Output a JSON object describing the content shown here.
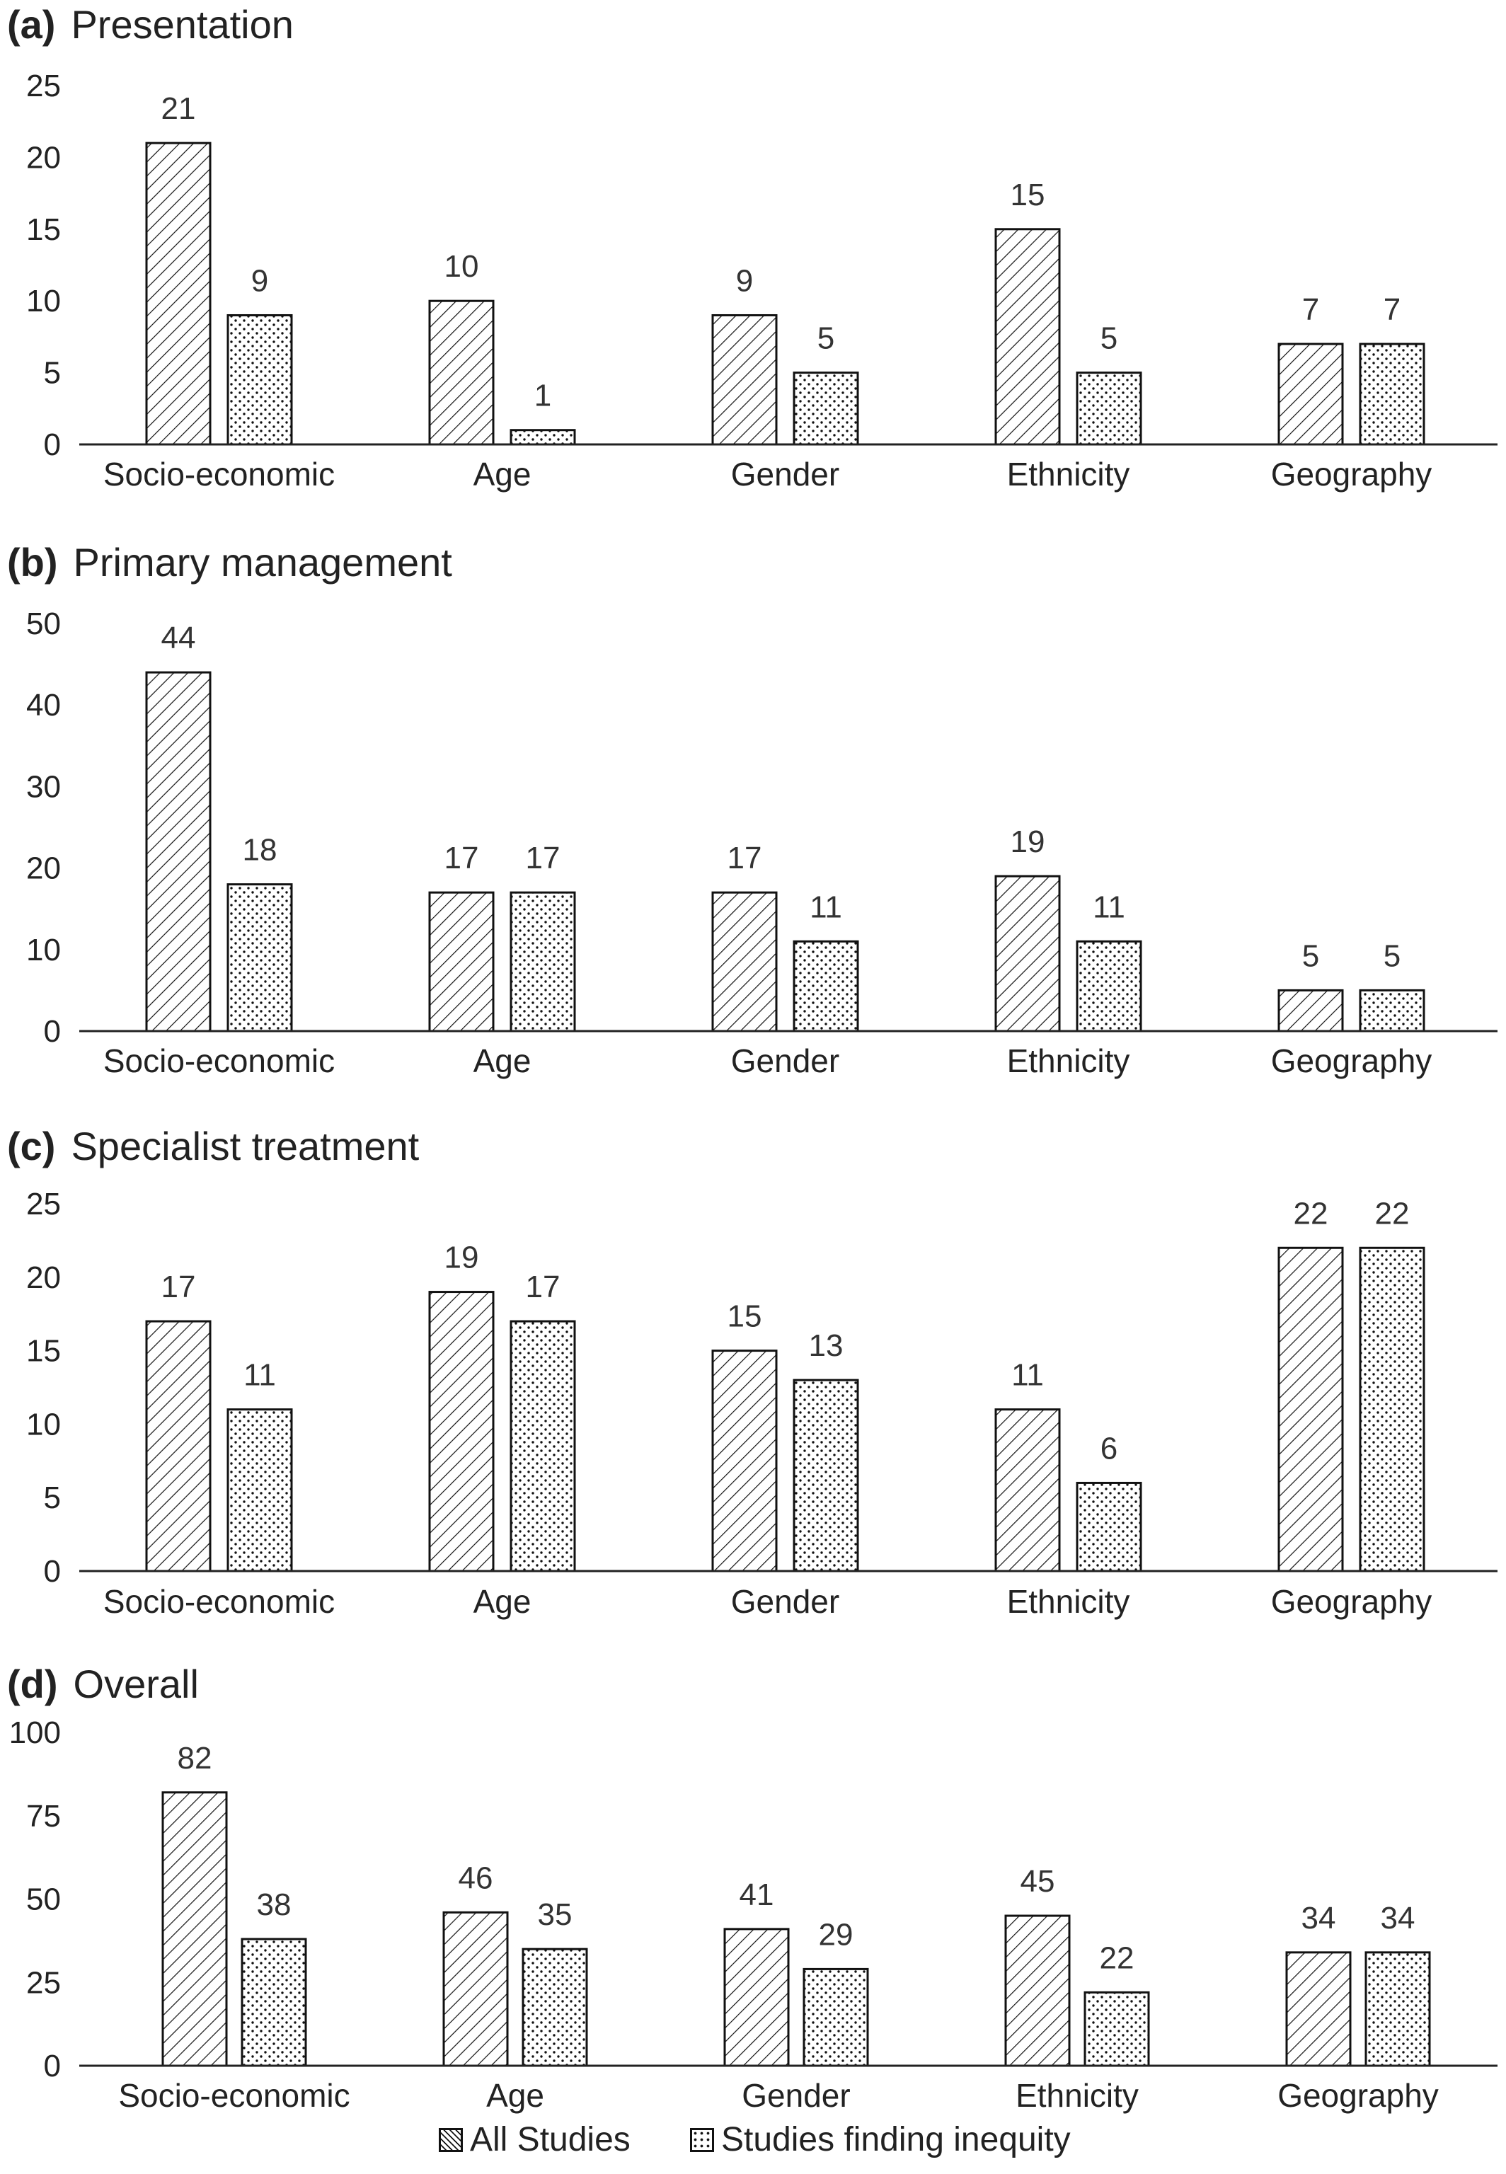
{
  "chart_data": [
    {
      "type": "bar",
      "panel_label": "(a)",
      "title": "Presentation",
      "categories": [
        "Socio-economic",
        "Age",
        "Gender",
        "Ethnicity",
        "Geography"
      ],
      "series": [
        {
          "name": "All Studies",
          "values": [
            21,
            10,
            9,
            15,
            7
          ]
        },
        {
          "name": "Studies finding inequity",
          "values": [
            9,
            1,
            5,
            5,
            7
          ]
        }
      ],
      "ylim": [
        0,
        25
      ],
      "yticks": [
        0,
        5,
        10,
        15,
        20,
        25
      ],
      "grid": false
    },
    {
      "type": "bar",
      "panel_label": "(b)",
      "title": "Primary management",
      "categories": [
        "Socio-economic",
        "Age",
        "Gender",
        "Ethnicity",
        "Geography"
      ],
      "series": [
        {
          "name": "All Studies",
          "values": [
            44,
            17,
            17,
            19,
            5
          ]
        },
        {
          "name": "Studies finding inequity",
          "values": [
            18,
            17,
            11,
            11,
            5
          ]
        }
      ],
      "ylim": [
        0,
        50
      ],
      "yticks": [
        0,
        10,
        20,
        30,
        40,
        50
      ],
      "grid": false
    },
    {
      "type": "bar",
      "panel_label": "(c)",
      "title": "Specialist treatment",
      "categories": [
        "Socio-economic",
        "Age",
        "Gender",
        "Ethnicity",
        "Geography"
      ],
      "series": [
        {
          "name": "All Studies",
          "values": [
            17,
            19,
            15,
            11,
            22
          ]
        },
        {
          "name": "Studies finding inequity",
          "values": [
            11,
            17,
            13,
            6,
            22
          ]
        }
      ],
      "ylim": [
        0,
        25
      ],
      "yticks": [
        0,
        5,
        10,
        15,
        20,
        25
      ],
      "grid": false
    },
    {
      "type": "bar",
      "panel_label": "(d)",
      "title": "Overall",
      "categories": [
        "Socio-economic",
        "Age",
        "Gender",
        "Ethnicity",
        "Geography"
      ],
      "series": [
        {
          "name": "All Studies",
          "values": [
            82,
            46,
            41,
            45,
            34
          ]
        },
        {
          "name": "Studies finding inequity",
          "values": [
            38,
            35,
            29,
            22,
            34
          ]
        }
      ],
      "ylim": [
        0,
        100
      ],
      "yticks": [
        0,
        25,
        50,
        75,
        100
      ],
      "grid": false
    }
  ],
  "legend": {
    "placement": "bottom",
    "items": [
      {
        "label": "All Studies",
        "pattern": "diagonal-hatch"
      },
      {
        "label": "Studies finding inequity",
        "pattern": "dots"
      }
    ]
  },
  "colors": {
    "bar_stroke": "#111111",
    "bar_fill": "#ffffff",
    "text": "#222222",
    "axis": "#222222"
  }
}
